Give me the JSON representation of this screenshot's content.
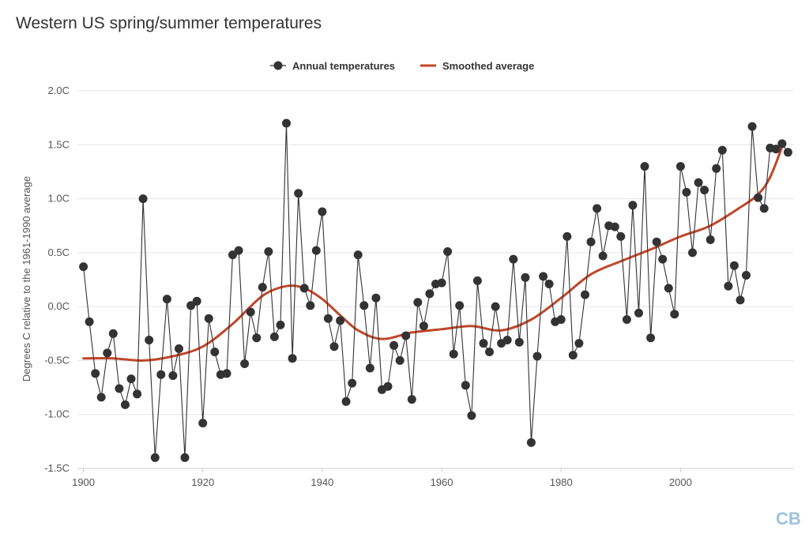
{
  "chart_data": {
    "type": "line",
    "title": "Western US spring/summer temperatures",
    "ylabel": "Degrees C relative to the 1961-1990 average",
    "xlabel": "",
    "xlim": [
      1899,
      2019
    ],
    "ylim": [
      -1.5,
      2.0
    ],
    "x_ticks": [
      "1900",
      "1920",
      "1940",
      "1960",
      "1980",
      "2000"
    ],
    "x_tick_values": [
      1900,
      1920,
      1940,
      1960,
      1980,
      2000
    ],
    "y_ticks": [
      "-1.5C",
      "-1.0C",
      "-0.5C",
      "0.0C",
      "0.5C",
      "1.0C",
      "1.5C",
      "2.0C"
    ],
    "y_tick_values": [
      -1.5,
      -1.0,
      -0.5,
      0.0,
      0.5,
      1.0,
      1.5,
      2.0
    ],
    "grid": "horizontal",
    "legend_position": "top-center",
    "logo_text": "CB",
    "series": [
      {
        "name": "Annual temperatures",
        "color": "#333333",
        "marker": "circle",
        "x_start": 1900,
        "values": [
          0.37,
          -0.14,
          -0.62,
          -0.84,
          -0.43,
          -0.25,
          -0.76,
          -0.91,
          -0.67,
          -0.81,
          1.0,
          -0.31,
          -1.4,
          -0.63,
          0.07,
          -0.64,
          -0.39,
          -1.4,
          0.01,
          0.05,
          -1.08,
          -0.11,
          -0.42,
          -0.63,
          -0.62,
          0.48,
          0.52,
          -0.53,
          -0.05,
          -0.29,
          0.18,
          0.51,
          -0.28,
          -0.17,
          1.7,
          -0.48,
          1.05,
          0.17,
          0.01,
          0.52,
          0.88,
          -0.11,
          -0.37,
          -0.13,
          -0.88,
          -0.71,
          0.48,
          0.01,
          -0.57,
          0.08,
          -0.77,
          -0.74,
          -0.36,
          -0.5,
          -0.27,
          -0.86,
          0.04,
          -0.18,
          0.12,
          0.21,
          0.22,
          0.51,
          -0.44,
          0.01,
          -0.73,
          -1.01,
          0.24,
          -0.34,
          -0.42,
          0.0,
          -0.34,
          -0.31,
          0.44,
          -0.33,
          0.27,
          -1.26,
          -0.46,
          0.28,
          0.21,
          -0.14,
          -0.12,
          0.65,
          -0.45,
          -0.34,
          0.11,
          0.6,
          0.91,
          0.47,
          0.75,
          0.74,
          0.65,
          -0.12,
          0.94,
          -0.06,
          1.3,
          -0.29,
          0.6,
          0.44,
          0.17,
          -0.07,
          1.3,
          1.06,
          0.5,
          1.15,
          1.08,
          0.62,
          1.28,
          1.45,
          0.19,
          0.38,
          0.06,
          0.29,
          1.67,
          1.01,
          0.91,
          1.47,
          1.46,
          1.51,
          1.43
        ]
      },
      {
        "name": "Smoothed average",
        "color": "#c0462a",
        "x": [
          1900,
          1905,
          1910,
          1915,
          1920,
          1925,
          1930,
          1934,
          1937,
          1940,
          1943,
          1946,
          1950,
          1955,
          1960,
          1965,
          1970,
          1975,
          1980,
          1985,
          1990,
          1995,
          2000,
          2005,
          2010,
          2013,
          2015,
          2017
        ],
        "values": [
          -0.48,
          -0.48,
          -0.5,
          -0.46,
          -0.37,
          -0.16,
          0.1,
          0.19,
          0.17,
          0.07,
          -0.08,
          -0.22,
          -0.3,
          -0.24,
          -0.21,
          -0.18,
          -0.22,
          -0.12,
          0.08,
          0.3,
          0.42,
          0.53,
          0.65,
          0.75,
          0.92,
          1.04,
          1.2,
          1.48
        ]
      }
    ]
  }
}
